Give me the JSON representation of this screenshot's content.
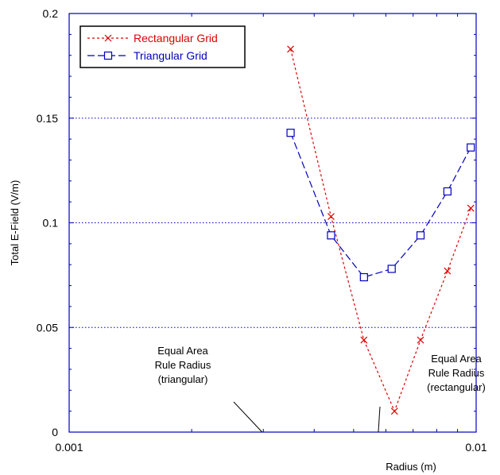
{
  "chart_data": {
    "type": "line",
    "xscale": "log",
    "xlim": [
      0.001,
      0.01
    ],
    "ylim": [
      0,
      0.2
    ],
    "xlabel": "Radius (m)",
    "ylabel": "Total E-Field (V/m)",
    "x_tick_labels": [
      "0.001",
      "0.01"
    ],
    "y_tick_labels": [
      "0",
      "0.05",
      "0.1",
      "0.15",
      "0.2"
    ],
    "y_ticks": [
      0,
      0.05,
      0.1,
      0.15,
      0.2
    ],
    "grid": "horizontal dotted at major y ticks",
    "legend_position": "top-left",
    "series": [
      {
        "name": "Rectangular Grid",
        "color": "#dd0000",
        "marker": "x",
        "line_style": "dashed",
        "x": [
          0.0035,
          0.0044,
          0.0053,
          0.0063,
          0.0073,
          0.0085,
          0.0097
        ],
        "y": [
          0.183,
          0.103,
          0.044,
          0.01,
          0.044,
          0.077,
          0.107
        ]
      },
      {
        "name": "Triangular Grid",
        "color": "#0000bb",
        "marker": "square",
        "line_style": "long-dash",
        "x": [
          0.0035,
          0.0044,
          0.0053,
          0.0062,
          0.0073,
          0.0085,
          0.0097
        ],
        "y": [
          0.143,
          0.094,
          0.074,
          0.078,
          0.094,
          0.115,
          0.136
        ]
      }
    ],
    "annotations": [
      {
        "lines": [
          "Equal Area",
          "Rule Radius",
          "(triangular)"
        ],
        "points_to_x": 0.00298,
        "points_to_y": 0
      },
      {
        "lines": [
          "Equal Area",
          "Rule Radius",
          "(rectangular)"
        ],
        "points_to_x": 0.00575,
        "points_to_y": 0
      }
    ]
  }
}
